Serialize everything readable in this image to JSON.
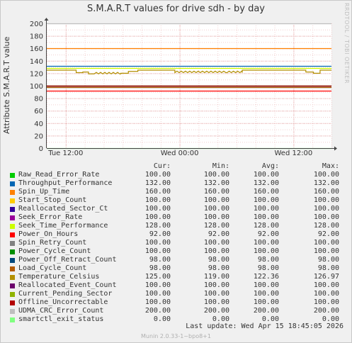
{
  "title": "S.M.A.R.T values for drive sdh - by day",
  "ylabel": "Attribute S.M.A.R.T value",
  "watermark": "RRDTOOL / TOBI OETIKER",
  "footer": "Munin 2.0.33-1~bpo8+1",
  "last_update": "Last update:  Wed Apr 15 18:45:05 2026",
  "legend_headers": {
    "cur": "Cur:",
    "min": "Min:",
    "avg": "Avg:",
    "max": "Max:"
  },
  "chart_data": {
    "type": "line",
    "ylim": [
      0,
      200
    ],
    "yticks": [
      0,
      20,
      40,
      60,
      80,
      100,
      120,
      140,
      160,
      180,
      200
    ],
    "xlim_hours": [
      0,
      30
    ],
    "xticks": [
      {
        "label": "Tue 12:00",
        "hour": 2
      },
      {
        "label": "Wed 00:00",
        "hour": 14
      },
      {
        "label": "Wed 12:00",
        "hour": 26
      }
    ],
    "grid": true,
    "series": [
      {
        "name": "Raw_Read_Error_Rate",
        "color": "#00cc00",
        "cur": "100.00",
        "min": "100.00",
        "avg": "100.00",
        "max": "100.00",
        "value": 100
      },
      {
        "name": "Throughput_Performance",
        "color": "#0066b3",
        "cur": "132.00",
        "min": "132.00",
        "avg": "132.00",
        "max": "132.00",
        "value": 132
      },
      {
        "name": "Spin_Up_Time",
        "color": "#ff8000",
        "cur": "160.00",
        "min": "160.00",
        "avg": "160.00",
        "max": "160.00",
        "value": 160
      },
      {
        "name": "Start_Stop_Count",
        "color": "#ffcc00",
        "cur": "100.00",
        "min": "100.00",
        "avg": "100.00",
        "max": "100.00",
        "value": 100
      },
      {
        "name": "Reallocated_Sector_Ct",
        "color": "#330099",
        "cur": "100.00",
        "min": "100.00",
        "avg": "100.00",
        "max": "100.00",
        "value": 100
      },
      {
        "name": "Seek_Error_Rate",
        "color": "#990099",
        "cur": "100.00",
        "min": "100.00",
        "avg": "100.00",
        "max": "100.00",
        "value": 100
      },
      {
        "name": "Seek_Time_Performance",
        "color": "#ccff00",
        "cur": "128.00",
        "min": "128.00",
        "avg": "128.00",
        "max": "128.00",
        "value": 128
      },
      {
        "name": "Power_On_Hours",
        "color": "#ff0000",
        "cur": "92.00",
        "min": "92.00",
        "avg": "92.00",
        "max": "92.00",
        "value": 92
      },
      {
        "name": "Spin_Retry_Count",
        "color": "#808080",
        "cur": "100.00",
        "min": "100.00",
        "avg": "100.00",
        "max": "100.00",
        "value": 100
      },
      {
        "name": "Power_Cycle_Count",
        "color": "#008f00",
        "cur": "100.00",
        "min": "100.00",
        "avg": "100.00",
        "max": "100.00",
        "value": 100
      },
      {
        "name": "Power_Off_Retract_Count",
        "color": "#00487d",
        "cur": "98.00",
        "min": "98.00",
        "avg": "98.00",
        "max": "98.00",
        "value": 98
      },
      {
        "name": "Load_Cycle_Count",
        "color": "#b35a00",
        "cur": "98.00",
        "min": "98.00",
        "avg": "98.00",
        "max": "98.00",
        "value": 98
      },
      {
        "name": "Temperature_Celsius",
        "color": "#b38f00",
        "cur": "125.00",
        "min": "119.00",
        "avg": "122.36",
        "max": "126.97"
      },
      {
        "name": "Reallocated_Event_Count",
        "color": "#6b006b",
        "cur": "100.00",
        "min": "100.00",
        "avg": "100.00",
        "max": "100.00",
        "value": 100
      },
      {
        "name": "Current_Pending_Sector",
        "color": "#8fb300",
        "cur": "100.00",
        "min": "100.00",
        "avg": "100.00",
        "max": "100.00",
        "value": 100
      },
      {
        "name": "Offline_Uncorrectable",
        "color": "#b30000",
        "cur": "100.00",
        "min": "100.00",
        "avg": "100.00",
        "max": "100.00",
        "value": 100
      },
      {
        "name": "UDMA_CRC_Error_Count",
        "color": "#bebebe",
        "cur": "200.00",
        "min": "200.00",
        "avg": "200.00",
        "max": "200.00",
        "value": 200
      },
      {
        "name": "smartctl_exit_status",
        "color": "#80ff80",
        "cur": "0.00",
        "min": "0.00",
        "avg": "0.00",
        "max": "0.00",
        "value": 0
      }
    ],
    "temperature_profile": [
      {
        "t0": 0.0,
        "t1": 3.1,
        "v": 125
      },
      {
        "t0": 3.1,
        "t1": 3.8,
        "v": 121
      },
      {
        "t0": 3.8,
        "t1": 4.4,
        "v": 122
      },
      {
        "t0": 4.4,
        "t1": 5.0,
        "v": 119
      },
      {
        "t0": 5.0,
        "t1": 7.8,
        "v": 119
      },
      {
        "t0": 7.8,
        "t1": 8.6,
        "v": 120
      },
      {
        "t0": 8.6,
        "t1": 9.6,
        "v": 123
      },
      {
        "t0": 9.6,
        "t1": 12.2,
        "v": 125
      },
      {
        "t0": 12.2,
        "t1": 13.5,
        "v": 125
      },
      {
        "t0": 13.5,
        "t1": 19.0,
        "v": 121
      },
      {
        "t0": 19.0,
        "t1": 20.6,
        "v": 121
      },
      {
        "t0": 20.6,
        "t1": 27.3,
        "v": 125
      },
      {
        "t0": 27.3,
        "t1": 28.1,
        "v": 122
      },
      {
        "t0": 28.1,
        "t1": 28.8,
        "v": 120
      },
      {
        "t0": 28.8,
        "t1": 30.0,
        "v": 125
      }
    ]
  }
}
